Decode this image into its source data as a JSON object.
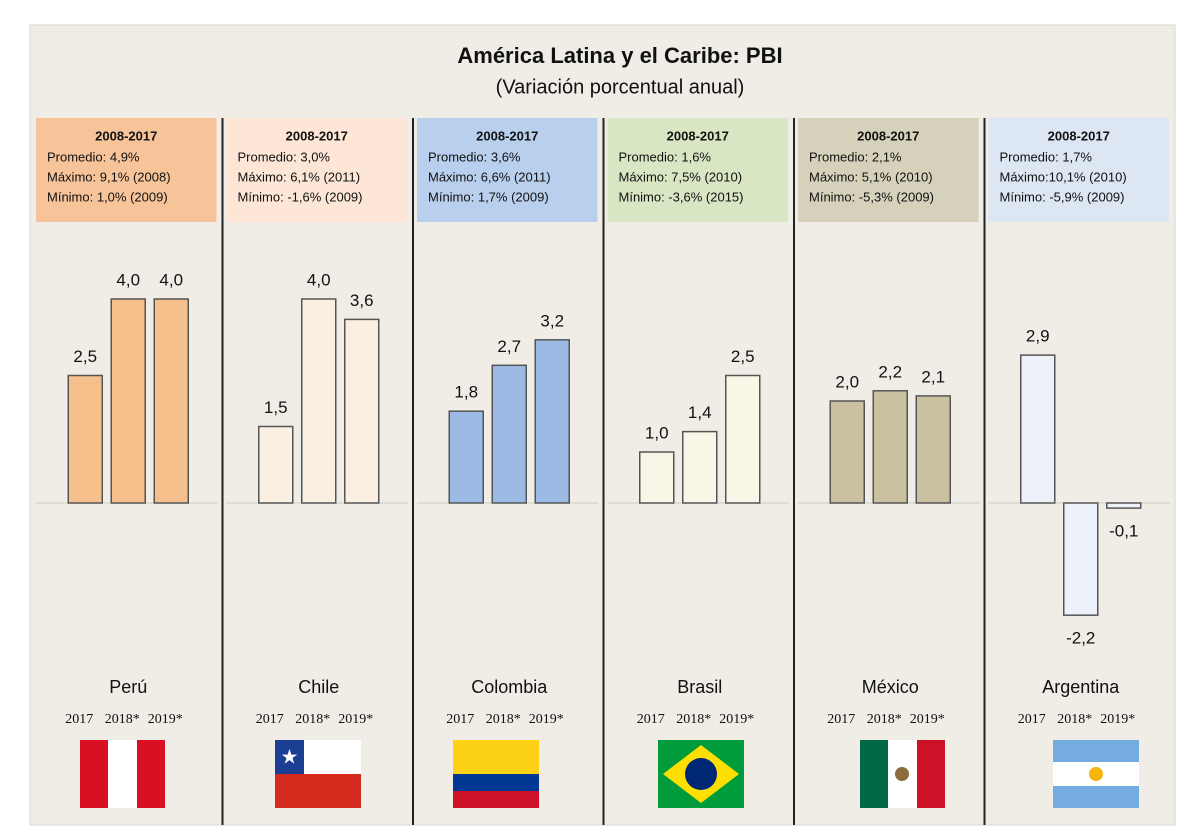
{
  "title": "América Latina y el Caribe: PBI",
  "subtitle": "(Variación porcentual anual)",
  "chart_data": [
    {
      "type": "bar",
      "title": "Perú",
      "header": "2008-2017",
      "notes": [
        "Promedio: 4,9%",
        "Máximo: 9,1% (2008)",
        "Mínimo:  1,0% (2009)"
      ],
      "categories": [
        "2017",
        "2018*",
        "2019*"
      ],
      "values": [
        2.5,
        4.0,
        4.0
      ],
      "value_labels": [
        "2,5",
        "4,0",
        "4,0"
      ],
      "color": "#f6c08c",
      "header_color": "#f7c49a"
    },
    {
      "type": "bar",
      "title": "Chile",
      "header": "2008-2017",
      "notes": [
        "Promedio: 3,0%",
        "Máximo: 6,1% (2011)",
        "Mínimo: -1,6% (2009)"
      ],
      "categories": [
        "2017",
        "2018*",
        "2019*"
      ],
      "values": [
        1.5,
        4.0,
        3.6
      ],
      "value_labels": [
        "1,5",
        "4,0",
        "3,6"
      ],
      "color": "#fbefe2",
      "header_color": "#fde6d6"
    },
    {
      "type": "bar",
      "title": "Colombia",
      "header": "2008-2017",
      "notes": [
        "Promedio: 3,6%",
        "Máximo: 6,6% (2011)",
        "Mínimo:  1,7% (2009)"
      ],
      "categories": [
        "2017",
        "2018*",
        "2019*"
      ],
      "values": [
        1.8,
        2.7,
        3.2
      ],
      "value_labels": [
        "1,8",
        "2,7",
        "3,2"
      ],
      "color": "#9bbbe4",
      "header_color": "#b9cfee"
    },
    {
      "type": "bar",
      "title": "Brasil",
      "header": "2008-2017",
      "notes": [
        "Promedio: 1,6%",
        "Máximo: 7,5% (2010)",
        "Mínimo: -3,6% (2015)"
      ],
      "categories": [
        "2017",
        "2018*",
        "2019*"
      ],
      "values": [
        1.0,
        1.4,
        2.5
      ],
      "value_labels": [
        "1,0",
        "1,4",
        "2,5"
      ],
      "color": "#f8f6e6",
      "header_color": "#d9e6c3"
    },
    {
      "type": "bar",
      "title": "México",
      "header": "2008-2017",
      "notes": [
        "Promedio: 2,1%",
        "Máximo: 5,1% (2010)",
        "Mínimo: -5,3% (2009)"
      ],
      "categories": [
        "2017",
        "2018*",
        "2019*"
      ],
      "values": [
        2.0,
        2.2,
        2.1
      ],
      "value_labels": [
        "2,0",
        "2,2",
        "2,1"
      ],
      "color": "#c9c1a0",
      "header_color": "#d6d1ba"
    },
    {
      "type": "bar",
      "title": "Argentina",
      "header": "2008-2017",
      "notes": [
        "Promedio: 1,7%",
        "Máximo:10,1% (2010)",
        "Mínimo:  -5,9% (2009)"
      ],
      "categories": [
        "2017",
        "2018*",
        "2019*"
      ],
      "values": [
        2.9,
        -2.2,
        -0.1
      ],
      "value_labels": [
        "2,9",
        "-2,2",
        "-0,1"
      ],
      "color": "#edf1fa",
      "header_color": "#dde6f3"
    }
  ]
}
